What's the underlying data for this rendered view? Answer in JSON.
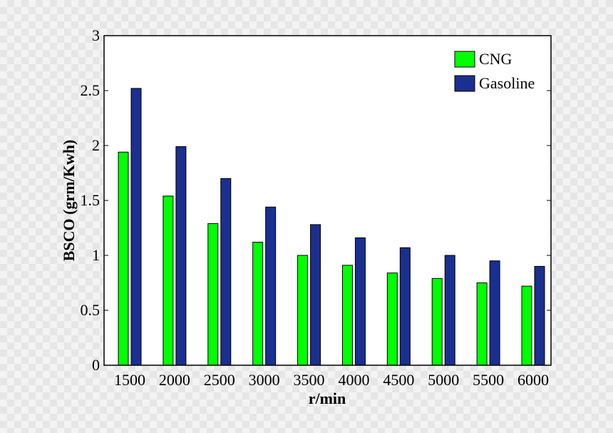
{
  "chart_data": {
    "type": "bar",
    "xlabel": "r/min",
    "ylabel": "BSCO (grm/Kwh)",
    "categories": [
      "1500",
      "2000",
      "2500",
      "3000",
      "3500",
      "4000",
      "4500",
      "5000",
      "5500",
      "6000"
    ],
    "series": [
      {
        "name": "CNG",
        "color": "#00ff00",
        "values": [
          1.94,
          1.54,
          1.29,
          1.12,
          1.0,
          0.91,
          0.84,
          0.79,
          0.75,
          0.72
        ]
      },
      {
        "name": "Gasoline",
        "color": "#1a2f8f",
        "values": [
          2.52,
          1.99,
          1.7,
          1.44,
          1.28,
          1.16,
          1.07,
          1.0,
          0.95,
          0.9
        ]
      }
    ],
    "ylim": [
      0,
      3
    ],
    "yticks": [
      "0",
      "0.5",
      "1",
      "1.5",
      "2",
      "2.5",
      "3"
    ],
    "legend": "top-right",
    "grid": false
  }
}
